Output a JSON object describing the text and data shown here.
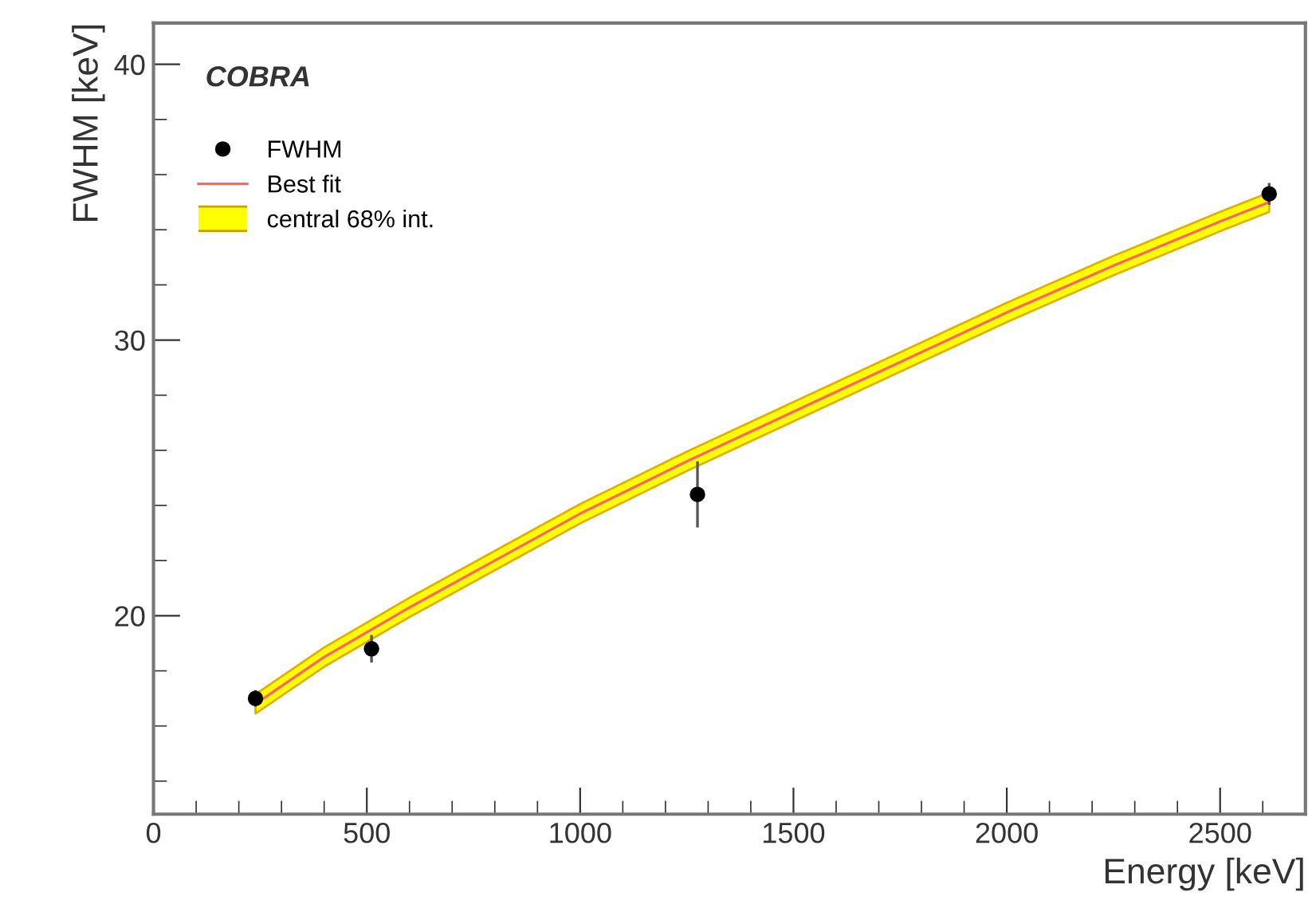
{
  "chart_data": {
    "type": "scatter",
    "xlabel": "Energy [keV]",
    "ylabel": "FWHM [keV]",
    "annotations": [
      "COBRA",
      "central 68% int."
    ],
    "xlim": [
      0,
      2700
    ],
    "xticks": [
      0,
      500,
      1000,
      1500,
      2000,
      2500
    ],
    "ylim": [
      12.8,
      41.5
    ],
    "yticks": [
      20,
      30,
      40
    ],
    "grid": false,
    "legend": "top left",
    "series": [
      {
        "name": "FWHM",
        "marker": "circle",
        "color": "#000000",
        "x": [
          239,
          511,
          1275,
          2615
        ],
        "values": [
          17.0,
          18.8,
          24.4,
          35.3
        ],
        "errors": [
          0.3,
          0.5,
          1.2,
          0.4
        ]
      },
      {
        "name": "Best fit",
        "type": "line",
        "color": "#ff6666",
        "x": [
          239,
          400,
          600,
          800,
          1000,
          1250,
          1500,
          1750,
          2000,
          2250,
          2500,
          2615
        ],
        "values": [
          16.8,
          18.5,
          20.3,
          22.0,
          23.7,
          25.6,
          27.4,
          29.2,
          31.0,
          32.7,
          34.3,
          35.0
        ],
        "lower": [
          16.45,
          18.15,
          19.95,
          21.65,
          23.35,
          25.25,
          27.05,
          28.85,
          30.65,
          32.35,
          33.95,
          34.65
        ],
        "upper": [
          17.15,
          18.85,
          20.65,
          22.35,
          24.05,
          25.95,
          27.75,
          29.55,
          31.35,
          33.05,
          34.65,
          35.35
        ]
      }
    ]
  }
}
